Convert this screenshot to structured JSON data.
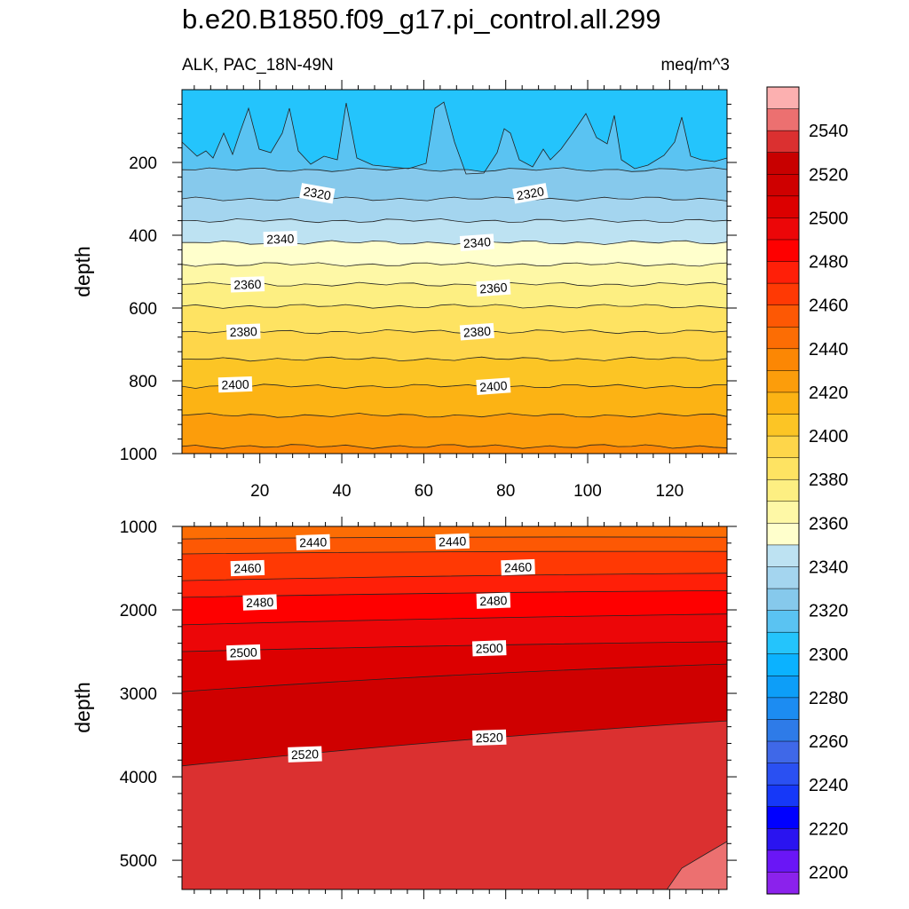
{
  "header": {
    "title": "b.e20.B1850.f09_g17.pi_control.all.299",
    "subtitle_left": "ALK, PAC_18N-49N",
    "subtitle_right": "meq/m^3"
  },
  "chart_data": [
    {
      "type": "contour",
      "panel": "upper",
      "ylabel": "depth",
      "xlabel": "",
      "xlim": [
        1,
        134
      ],
      "ylim": [
        1000,
        0
      ],
      "x_ticks": [
        20,
        40,
        60,
        80,
        100,
        120
      ],
      "y_ticks": [
        200,
        400,
        600,
        800,
        1000
      ],
      "contour_interval": 10,
      "isolines": [
        {
          "level": 2300,
          "depth": 135
        },
        {
          "level": 2310,
          "depth": 220
        },
        {
          "level": 2320,
          "depth": 300
        },
        {
          "level": 2330,
          "depth": 360
        },
        {
          "level": 2340,
          "depth": 420
        },
        {
          "level": 2350,
          "depth": 480
        },
        {
          "level": 2360,
          "depth": 535
        },
        {
          "level": 2370,
          "depth": 595
        },
        {
          "level": 2380,
          "depth": 665
        },
        {
          "level": 2390,
          "depth": 740
        },
        {
          "level": 2400,
          "depth": 815
        },
        {
          "level": 2410,
          "depth": 895
        },
        {
          "level": 2420,
          "depth": 980
        }
      ],
      "contour_labels": [
        {
          "text": "2320",
          "x": 34,
          "depth": 285
        },
        {
          "text": "2320",
          "x": 86,
          "depth": 285
        },
        {
          "text": "2340",
          "x": 25,
          "depth": 410
        },
        {
          "text": "2340",
          "x": 73,
          "depth": 420
        },
        {
          "text": "2360",
          "x": 17,
          "depth": 535
        },
        {
          "text": "2360",
          "x": 77,
          "depth": 545
        },
        {
          "text": "2380",
          "x": 16,
          "depth": 665
        },
        {
          "text": "2380",
          "x": 73,
          "depth": 665
        },
        {
          "text": "2400",
          "x": 14,
          "depth": 810
        },
        {
          "text": "2400",
          "x": 77,
          "depth": 815
        }
      ]
    },
    {
      "type": "contour",
      "panel": "lower",
      "ylabel": "depth",
      "xlabel": "",
      "xlim": [
        1,
        134
      ],
      "ylim": [
        5350,
        1000
      ],
      "y_ticks": [
        1000,
        2000,
        3000,
        4000,
        5000
      ],
      "contour_interval": 10,
      "isolines": [
        {
          "level": 2440,
          "depth_left": 1150,
          "depth_right": 1130
        },
        {
          "level": 2450,
          "depth_left": 1330,
          "depth_right": 1300
        },
        {
          "level": 2460,
          "depth_left": 1650,
          "depth_right": 1560
        },
        {
          "level": 2470,
          "depth_left": 1850,
          "depth_right": 1770
        },
        {
          "level": 2480,
          "depth_left": 2180,
          "depth_right": 2050
        },
        {
          "level": 2490,
          "depth_left": 2500,
          "depth_right": 2380
        },
        {
          "level": 2500,
          "depth_left": 2980,
          "depth_right": 2650
        },
        {
          "level": 2520,
          "depth_left": 3870,
          "depth_right": 3330
        },
        {
          "level": 2530,
          "depth_left": 5350,
          "depth_right": 4830
        }
      ],
      "contour_labels": [
        {
          "text": "2440",
          "x": 33,
          "depth": 1190
        },
        {
          "text": "2440",
          "x": 67,
          "depth": 1180
        },
        {
          "text": "2460",
          "x": 17,
          "depth": 1500
        },
        {
          "text": "2460",
          "x": 83,
          "depth": 1490
        },
        {
          "text": "2480",
          "x": 20,
          "depth": 1910
        },
        {
          "text": "2480",
          "x": 77,
          "depth": 1890
        },
        {
          "text": "2500",
          "x": 16,
          "depth": 2510
        },
        {
          "text": "2500",
          "x": 76,
          "depth": 2460
        },
        {
          "text": "2520",
          "x": 31,
          "depth": 3730
        },
        {
          "text": "2520",
          "x": 76,
          "depth": 3530
        }
      ]
    }
  ],
  "colorbar": {
    "tick_labels": [
      "2200",
      "2220",
      "2240",
      "2260",
      "2280",
      "2300",
      "2320",
      "2340",
      "2360",
      "2380",
      "2400",
      "2420",
      "2440",
      "2460",
      "2480",
      "2500",
      "2520",
      "2540"
    ],
    "colors": [
      "#8b22ec",
      "#6a16f6",
      "#2a14f0",
      "#0000ff",
      "#1638f8",
      "#2a50f2",
      "#3f68e8",
      "#2e7be8",
      "#1c8cf2",
      "#0d9ef8",
      "#0bb2ff",
      "#24c4fc",
      "#5ac3f2",
      "#86c9ec",
      "#a4d5ef",
      "#bde2f2",
      "#ffffcc",
      "#fef8a6",
      "#fdef82",
      "#fee362",
      "#fed64a",
      "#fcc525",
      "#fcb314",
      "#fc9d0b",
      "#fc8704",
      "#fc6d04",
      "#fd5804",
      "#ff3904",
      "#ff1f08",
      "#fe0000",
      "#ec0608",
      "#dc0000",
      "#cf0000",
      "#c80000",
      "#db3030",
      "#ec7070",
      "#fcb0b0"
    ]
  }
}
